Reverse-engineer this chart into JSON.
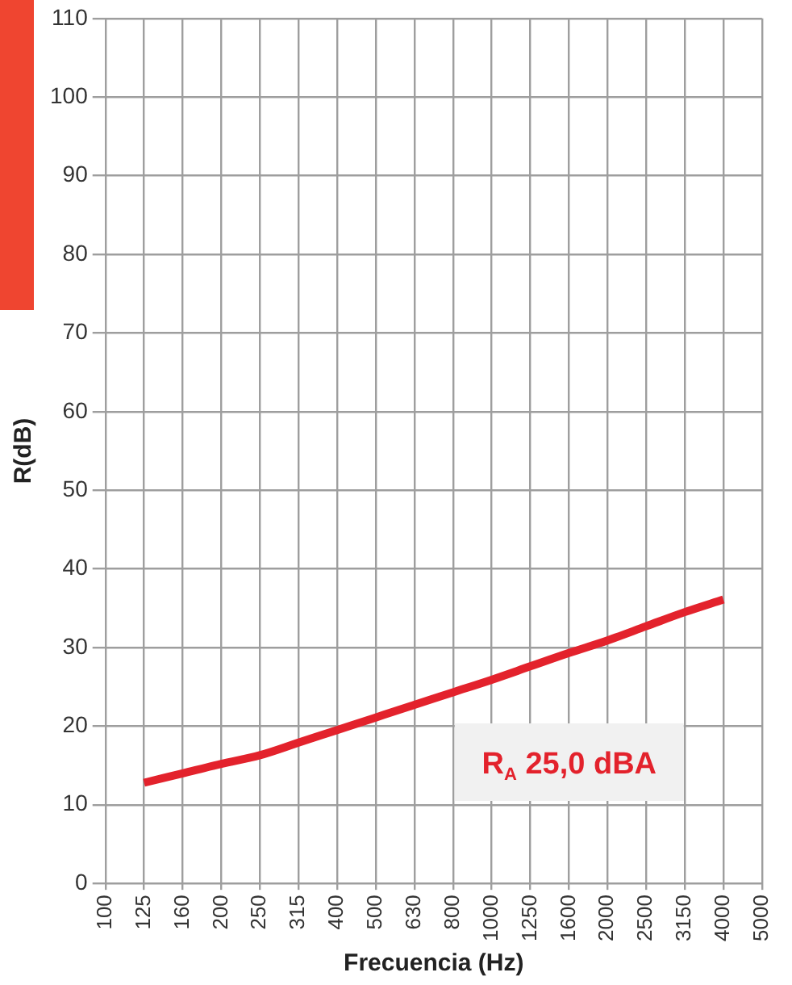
{
  "chart_data": {
    "type": "line",
    "xlabel": "Frecuencia (Hz)",
    "ylabel": "R(dB)",
    "categories": [
      "100",
      "125",
      "160",
      "200",
      "250",
      "315",
      "400",
      "500",
      "630",
      "800",
      "1000",
      "1250",
      "1600",
      "2000",
      "2500",
      "3150",
      "4000",
      "5000"
    ],
    "series": [
      {
        "color": "#e3222c",
        "values": [
          null,
          12.8,
          14.0,
          15.2,
          16.3,
          17.9,
          19.5,
          21.1,
          22.7,
          24.3,
          25.9,
          27.6,
          29.3,
          30.9,
          32.7,
          34.5,
          36.1,
          null
        ]
      }
    ],
    "ylim": [
      0,
      110
    ],
    "yticks": [
      0,
      10,
      20,
      30,
      40,
      50,
      60,
      70,
      80,
      90,
      100,
      110
    ],
    "grid": true,
    "legend": false,
    "marker": "none",
    "line_style": "solid",
    "annotations": [
      "R$_{A}$ 25,0 dBA"
    ]
  }
}
